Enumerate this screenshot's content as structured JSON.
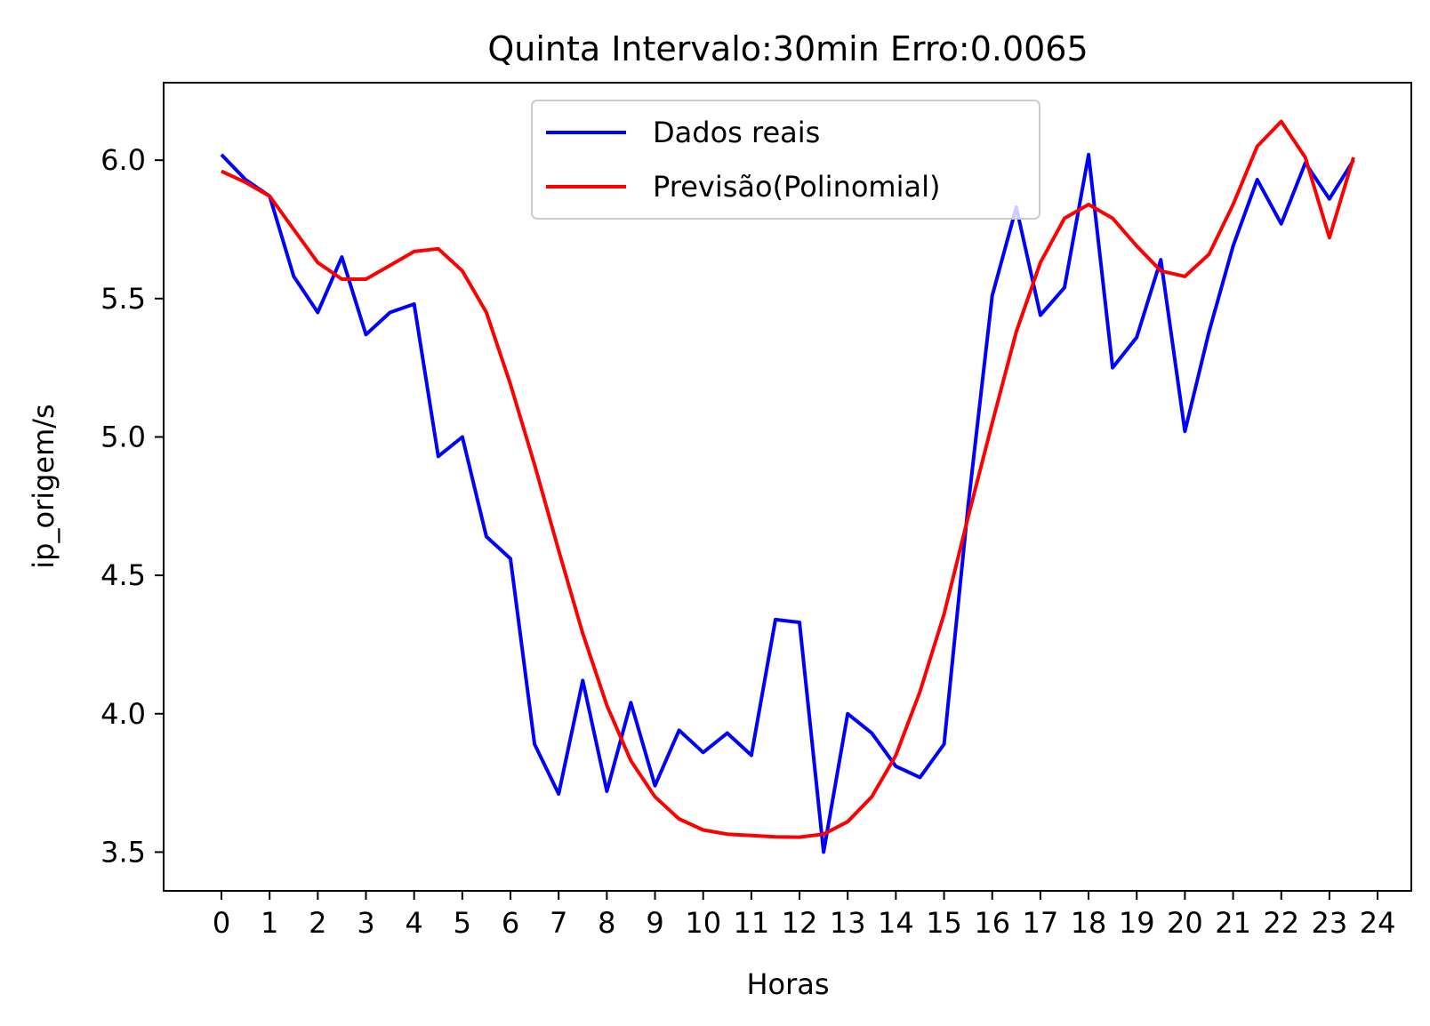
{
  "chart_data": {
    "type": "line",
    "title": "Quinta Intervalo:30min Erro:0.0065",
    "xlabel": "Horas",
    "ylabel": "ip_origem/s",
    "xlim": [
      -1.2,
      24.7
    ],
    "ylim": [
      3.36,
      6.28
    ],
    "x_ticks": [
      0,
      1,
      2,
      3,
      4,
      5,
      6,
      7,
      8,
      9,
      10,
      11,
      12,
      13,
      14,
      15,
      16,
      17,
      18,
      19,
      20,
      21,
      22,
      23,
      24
    ],
    "x_tick_labels": [
      "0",
      "1",
      "2",
      "3",
      "4",
      "5",
      "6",
      "7",
      "8",
      "9",
      "10",
      "11",
      "12",
      "13",
      "14",
      "15",
      "16",
      "17",
      "18",
      "19",
      "20",
      "21",
      "22",
      "23",
      "24"
    ],
    "y_ticks": [
      3.5,
      4.0,
      4.5,
      5.0,
      5.5,
      6.0
    ],
    "y_tick_labels": [
      "3.5",
      "4.0",
      "4.5",
      "5.0",
      "5.5",
      "6.0"
    ],
    "grid": false,
    "legend_position": "upper-center",
    "x": [
      0,
      0.5,
      1,
      1.5,
      2,
      2.5,
      3,
      3.5,
      4,
      4.5,
      5,
      5.5,
      6,
      6.5,
      7,
      7.5,
      8,
      8.5,
      9,
      9.5,
      10,
      10.5,
      11,
      11.5,
      12,
      12.5,
      13,
      13.5,
      14,
      14.5,
      15,
      15.5,
      16,
      16.5,
      17,
      17.5,
      18,
      18.5,
      19,
      19.5,
      20,
      20.5,
      21,
      21.5,
      22,
      22.5,
      23,
      23.5
    ],
    "series": [
      {
        "name": "Dados reais",
        "color": "#0000ff",
        "values": [
          6.02,
          5.93,
          5.87,
          5.58,
          5.45,
          5.65,
          5.37,
          5.45,
          5.48,
          4.93,
          5.0,
          4.64,
          4.56,
          3.89,
          3.71,
          4.12,
          3.72,
          4.04,
          3.74,
          3.94,
          3.86,
          3.93,
          3.85,
          4.34,
          4.33,
          3.5,
          4.0,
          3.93,
          3.81,
          3.77,
          3.89,
          4.75,
          5.51,
          5.83,
          5.44,
          5.54,
          6.02,
          5.25,
          5.36,
          5.64,
          5.02,
          5.38,
          5.69,
          5.93,
          5.77,
          5.99,
          5.86,
          6.0
        ]
      },
      {
        "name": "Previsão(Polinomial)",
        "color": "#ff0000",
        "values": [
          5.96,
          5.92,
          5.87,
          5.75,
          5.63,
          5.57,
          5.57,
          5.62,
          5.67,
          5.68,
          5.6,
          5.45,
          5.19,
          4.9,
          4.59,
          4.29,
          4.03,
          3.83,
          3.7,
          3.62,
          3.58,
          3.565,
          3.56,
          3.555,
          3.554,
          3.565,
          3.61,
          3.7,
          3.85,
          4.08,
          4.36,
          4.71,
          5.05,
          5.38,
          5.63,
          5.79,
          5.84,
          5.79,
          5.69,
          5.6,
          5.58,
          5.66,
          5.84,
          6.05,
          6.14,
          6.01,
          5.72,
          6.01
        ]
      }
    ]
  }
}
